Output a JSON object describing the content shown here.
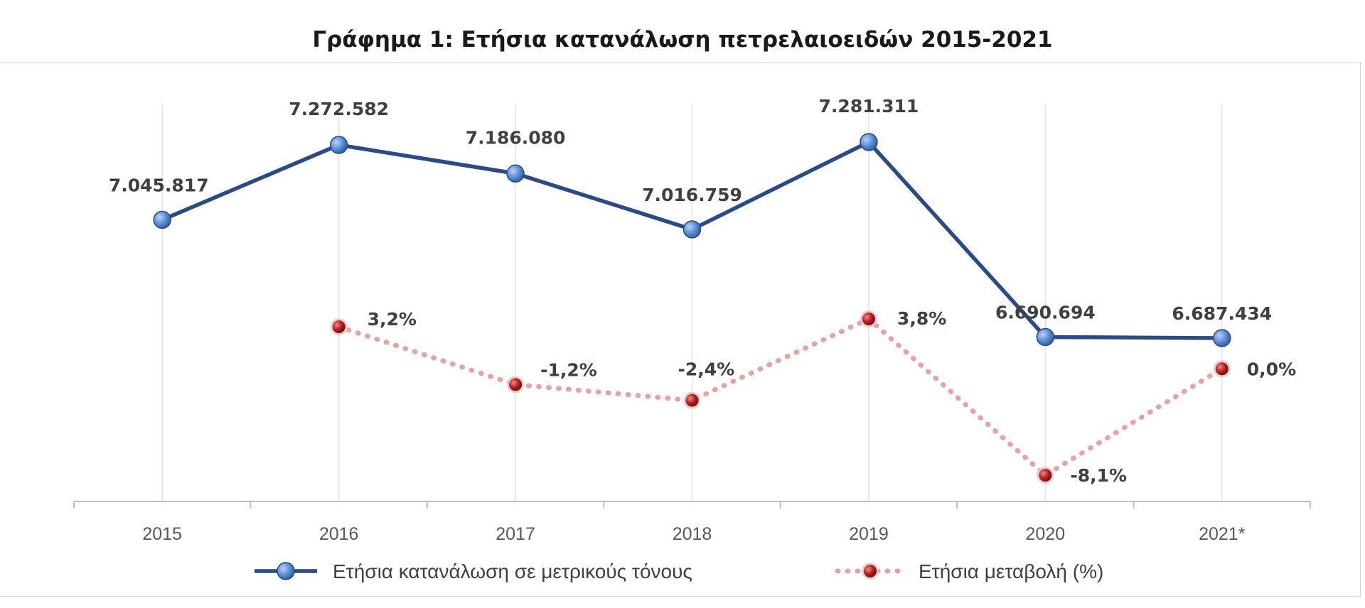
{
  "chart_data": {
    "type": "line",
    "title": "Γράφημα 1: Ετήσια κατανάλωση πετρελαιοειδών 2015-2021",
    "categories": [
      "2015",
      "2016",
      "2017",
      "2018",
      "2019",
      "2020",
      "2021*"
    ],
    "series": [
      {
        "name": "Ετήσια κατανάλωση σε μετρικούς τόνους",
        "values": [
          7045817,
          7272582,
          7186080,
          7016759,
          7281311,
          6690694,
          6687434
        ],
        "labels": [
          "7.045.817",
          "7.272.582",
          "7.186.080",
          "7.016.759",
          "7.281.311",
          "6.690.694",
          "6.687.434"
        ],
        "color": "#2b4a86",
        "marker_color": "#5b8fd6",
        "line_style": "solid"
      },
      {
        "name": "Ετήσια μεταβολή (%)",
        "values": [
          null,
          3.2,
          -1.2,
          -2.4,
          3.8,
          -8.1,
          0.0
        ],
        "labels": [
          "",
          "3,2%",
          "-1,2%",
          "-2,4%",
          "3,8%",
          "-8,1%",
          "0,0%"
        ],
        "color": "#e6a3a3",
        "marker_color": "#a21818",
        "line_style": "dotted"
      }
    ],
    "grid": "vertical",
    "legend": "bottom",
    "xlabel": "",
    "ylabel": ""
  }
}
